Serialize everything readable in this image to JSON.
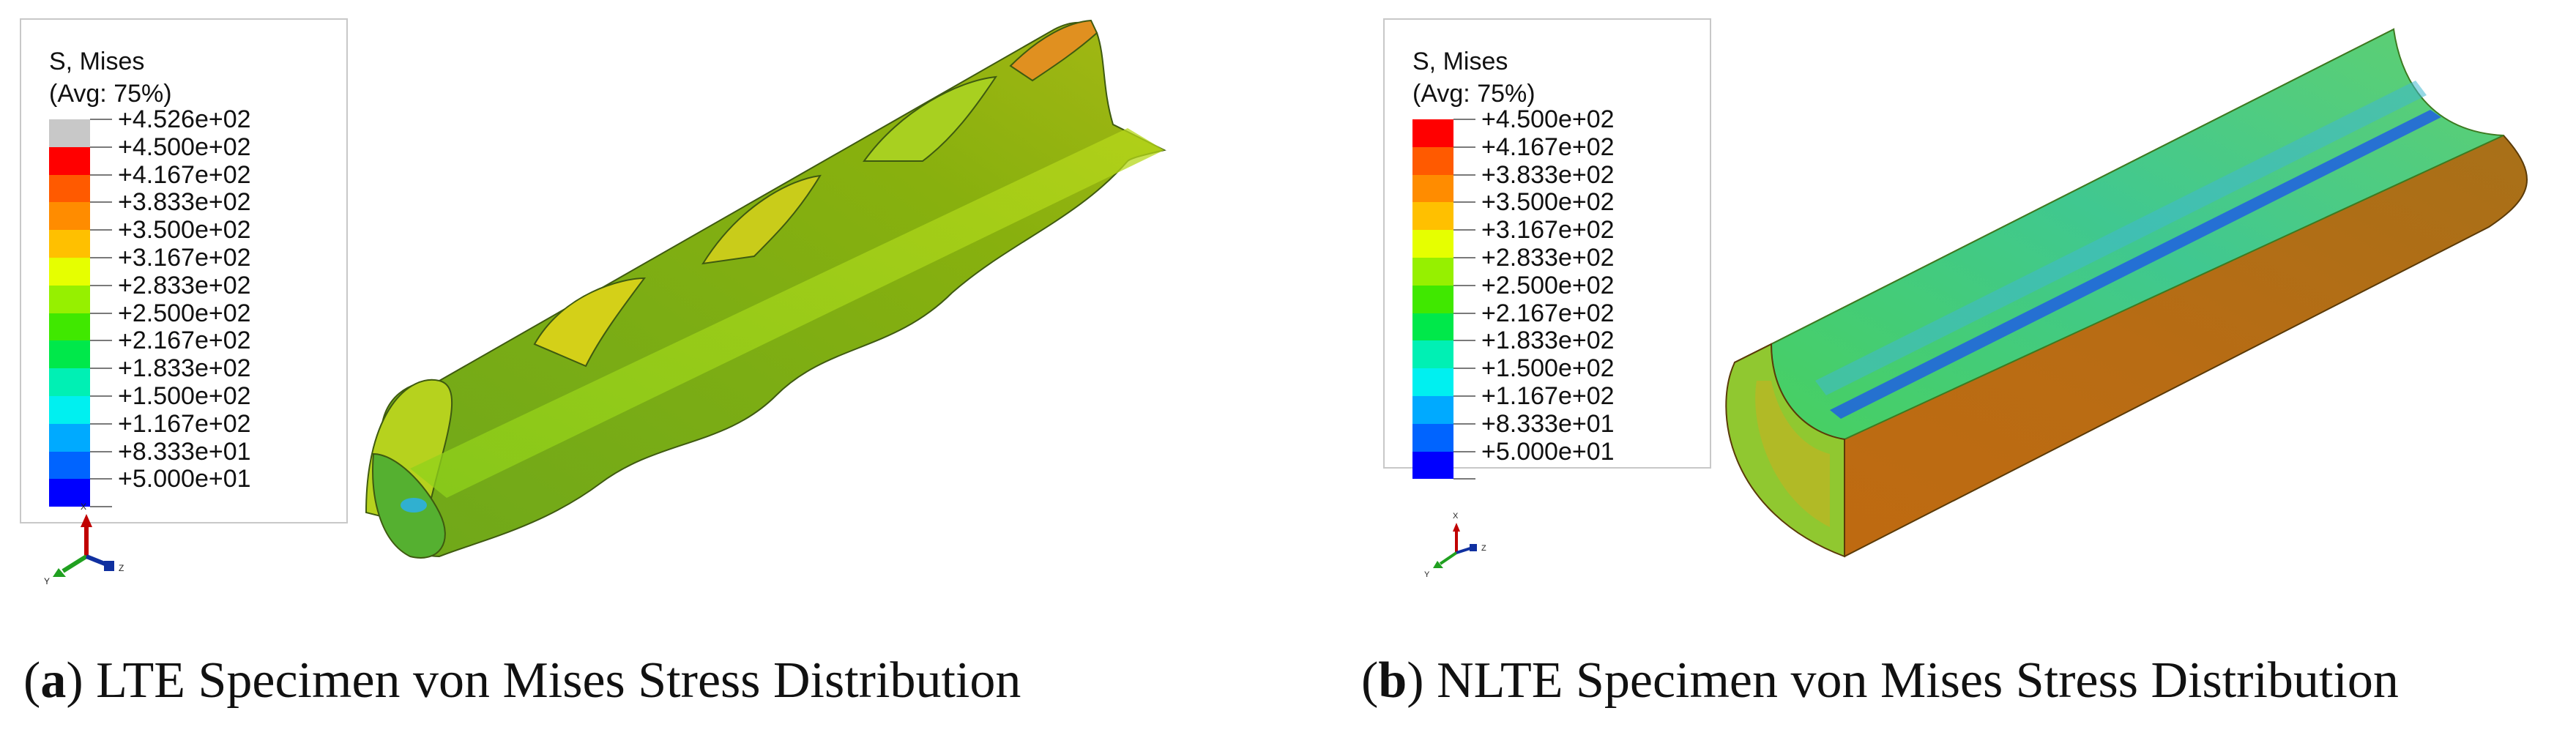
{
  "panel_a": {
    "legend": {
      "title": "S, Mises",
      "subtitle": "(Avg: 75%)",
      "entries": [
        {
          "label": "+4.526e+02",
          "color": "#c8c8c8"
        },
        {
          "label": "+4.500e+02",
          "color": "#ff0000"
        },
        {
          "label": "+4.167e+02",
          "color": "#ff5a00"
        },
        {
          "label": "+3.833e+02",
          "color": "#ff8c00"
        },
        {
          "label": "+3.500e+02",
          "color": "#ffc000"
        },
        {
          "label": "+3.167e+02",
          "color": "#e6ff00"
        },
        {
          "label": "+2.833e+02",
          "color": "#96f000"
        },
        {
          "label": "+2.500e+02",
          "color": "#40e800"
        },
        {
          "label": "+2.167e+02",
          "color": "#00e84a"
        },
        {
          "label": "+1.833e+02",
          "color": "#00f0b4"
        },
        {
          "label": "+1.500e+02",
          "color": "#00f0f0"
        },
        {
          "label": "+1.167e+02",
          "color": "#00aaff"
        },
        {
          "label": "+8.333e+01",
          "color": "#0064ff"
        },
        {
          "label": "+5.000e+01",
          "color": "#0000ff"
        }
      ]
    },
    "axes": {
      "x": "X",
      "y": "Y",
      "z": "Z"
    },
    "caption": {
      "letter": "a",
      "text": " LTE Specimen von Mises Stress Distribution"
    }
  },
  "panel_b": {
    "legend": {
      "title": "S, Mises",
      "subtitle": "(Avg: 75%)",
      "entries": [
        {
          "label": "+4.500e+02",
          "color": "#ff0000"
        },
        {
          "label": "+4.167e+02",
          "color": "#ff5a00"
        },
        {
          "label": "+3.833e+02",
          "color": "#ff8c00"
        },
        {
          "label": "+3.500e+02",
          "color": "#ffc000"
        },
        {
          "label": "+3.167e+02",
          "color": "#e6ff00"
        },
        {
          "label": "+2.833e+02",
          "color": "#96f000"
        },
        {
          "label": "+2.500e+02",
          "color": "#40e800"
        },
        {
          "label": "+2.167e+02",
          "color": "#00e84a"
        },
        {
          "label": "+1.833e+02",
          "color": "#00f0b4"
        },
        {
          "label": "+1.500e+02",
          "color": "#00f0f0"
        },
        {
          "label": "+1.167e+02",
          "color": "#00aaff"
        },
        {
          "label": "+8.333e+01",
          "color": "#0064ff"
        },
        {
          "label": "+5.000e+01",
          "color": "#0000ff"
        }
      ]
    },
    "axes": {
      "x": "X",
      "y": "Y",
      "z": "Z"
    },
    "caption": {
      "letter": "b",
      "text": " NLTE Specimen von Mises Stress Distribution"
    }
  }
}
